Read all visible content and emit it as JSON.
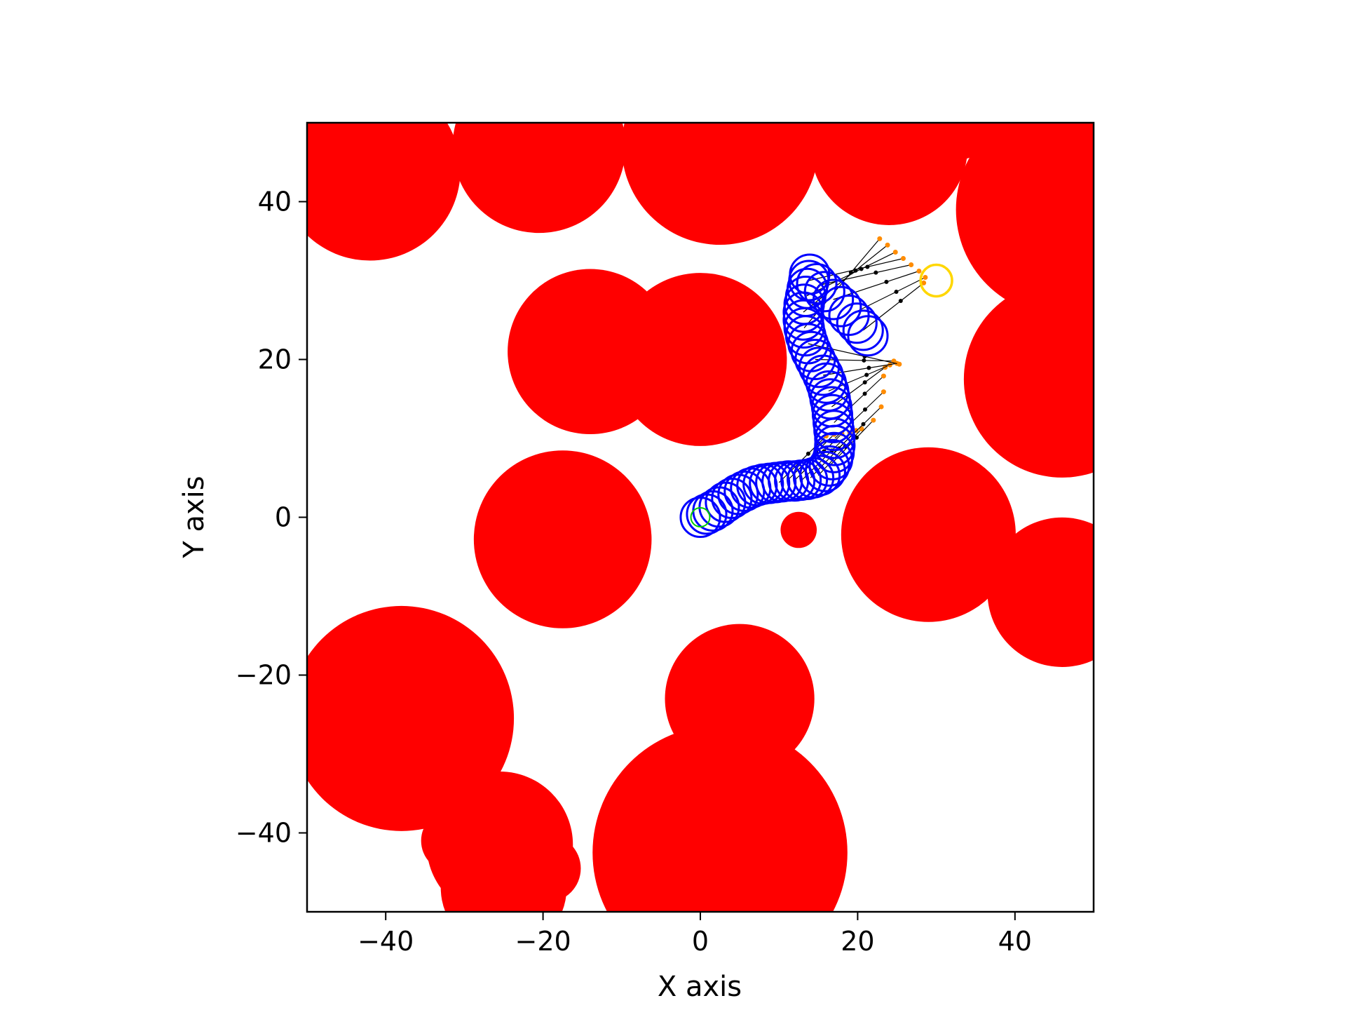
{
  "chart_data": {
    "type": "scatter",
    "title": "",
    "xlabel": "X axis",
    "ylabel": "Y axis",
    "xlim": [
      -50,
      50
    ],
    "ylim": [
      -50,
      50
    ],
    "grid": false,
    "legend": "none",
    "x_ticks": [
      -40,
      -20,
      0,
      20,
      40
    ],
    "y_ticks": [
      -40,
      -20,
      0,
      20,
      40
    ],
    "tick_labels": {
      "-40": "−40",
      "-20": "−20",
      "0": "0",
      "20": "20",
      "40": "40"
    },
    "colors": {
      "obstacle": "#ff0000",
      "path": "#0000ff",
      "goal": "#ffd700",
      "start": "#00cc00",
      "rays": "#000000",
      "ray_end": "#ff8c00"
    },
    "obstacles": [
      {
        "x": -42,
        "y": 44,
        "r": 11.5
      },
      {
        "x": -20.5,
        "y": 47,
        "r": 11
      },
      {
        "x": 2.5,
        "y": 47,
        "r": 12.5
      },
      {
        "x": 24,
        "y": 47,
        "r": 10
      },
      {
        "x": 31,
        "y": 55,
        "r": 10
      },
      {
        "x": 46,
        "y": 39,
        "r": 13.5
      },
      {
        "x": -14,
        "y": 21,
        "r": 10.5
      },
      {
        "x": 0,
        "y": 20,
        "r": 11
      },
      {
        "x": 46,
        "y": 17.5,
        "r": 12.5
      },
      {
        "x": -17.5,
        "y": -2.8,
        "r": 11.3
      },
      {
        "x": 29,
        "y": -2.2,
        "r": 11.1
      },
      {
        "x": 46,
        "y": -9.5,
        "r": 9.5
      },
      {
        "x": 12.5,
        "y": -1.6,
        "r": 2.3
      },
      {
        "x": -38,
        "y": -25.5,
        "r": 14.3
      },
      {
        "x": 5,
        "y": -23,
        "r": 9.5
      },
      {
        "x": -25.5,
        "y": -41.5,
        "r": 9.3
      },
      {
        "x": -31.5,
        "y": -41,
        "r": 4
      },
      {
        "x": -19.5,
        "y": -44.5,
        "r": 4.3
      },
      {
        "x": 2.5,
        "y": -42.5,
        "r": 16.2
      },
      {
        "x": -9,
        "y": -43,
        "r": 2.5
      },
      {
        "x": -25,
        "y": -47,
        "r": 8
      }
    ],
    "path": {
      "r": 2.5,
      "points": [
        [
          0,
          0
        ],
        [
          0.8,
          0.4
        ],
        [
          1.6,
          0.8
        ],
        [
          2.4,
          1.3
        ],
        [
          3.2,
          1.9
        ],
        [
          4.0,
          2.4
        ],
        [
          4.8,
          2.9
        ],
        [
          5.6,
          3.3
        ],
        [
          6.4,
          3.7
        ],
        [
          7.2,
          4.0
        ],
        [
          8.0,
          4.2
        ],
        [
          8.8,
          4.3
        ],
        [
          9.6,
          4.4
        ],
        [
          10.4,
          4.5
        ],
        [
          11.2,
          4.6
        ],
        [
          12.0,
          4.6
        ],
        [
          12.8,
          4.7
        ],
        [
          13.6,
          4.8
        ],
        [
          14.4,
          5.0
        ],
        [
          15.2,
          5.3
        ],
        [
          15.9,
          5.8
        ],
        [
          16.4,
          6.5
        ],
        [
          16.8,
          7.3
        ],
        [
          17.0,
          8.2
        ],
        [
          17.1,
          9.1
        ],
        [
          17.1,
          10.0
        ],
        [
          17.0,
          11.0
        ],
        [
          16.9,
          12.0
        ],
        [
          16.8,
          13.0
        ],
        [
          16.7,
          14.0
        ],
        [
          16.5,
          15.0
        ],
        [
          16.3,
          16.0
        ],
        [
          16.0,
          17.0
        ],
        [
          15.6,
          18.0
        ],
        [
          15.1,
          19.0
        ],
        [
          14.6,
          20.0
        ],
        [
          14.1,
          21.0
        ],
        [
          13.7,
          22.0
        ],
        [
          13.4,
          23.0
        ],
        [
          13.2,
          24.0
        ],
        [
          13.1,
          25.0
        ],
        [
          13.1,
          26.0
        ],
        [
          13.2,
          27.0
        ],
        [
          13.4,
          28.0
        ],
        [
          13.6,
          29.0
        ],
        [
          13.8,
          30.0
        ],
        [
          13.9,
          30.8
        ],
        [
          14.8,
          29.6
        ],
        [
          15.8,
          28.6
        ],
        [
          16.9,
          27.6
        ],
        [
          17.9,
          26.7
        ],
        [
          18.9,
          25.6
        ],
        [
          19.9,
          24.6
        ],
        [
          20.7,
          23.7
        ],
        [
          21.3,
          23.0
        ]
      ]
    },
    "start": {
      "x": 0,
      "y": 0,
      "r": 1.2
    },
    "goal": {
      "x": 30,
      "y": 30,
      "r": 2.0
    },
    "rays": [
      {
        "x1": 10.0,
        "y1": 4.4,
        "x2": 16.0,
        "y2": 10.3
      },
      {
        "x1": 11.0,
        "y1": 4.6,
        "x2": 17.0,
        "y2": 10.5
      },
      {
        "x1": 12.0,
        "y1": 4.7,
        "x2": 18.0,
        "y2": 10.6
      },
      {
        "x1": 13.0,
        "y1": 4.8,
        "x2": 19.0,
        "y2": 10.7
      },
      {
        "x1": 14.0,
        "y1": 5.0,
        "x2": 19.8,
        "y2": 11.0
      },
      {
        "x1": 15.0,
        "y1": 5.3,
        "x2": 20.5,
        "y2": 11.2
      },
      {
        "x1": 16.4,
        "y1": 6.5,
        "x2": 22.0,
        "y2": 12.3
      },
      {
        "x1": 17.0,
        "y1": 8.2,
        "x2": 23.0,
        "y2": 14.0
      },
      {
        "x1": 17.1,
        "y1": 10.0,
        "x2": 23.3,
        "y2": 15.9
      },
      {
        "x1": 17.0,
        "y1": 12.0,
        "x2": 23.3,
        "y2": 17.9
      },
      {
        "x1": 16.7,
        "y1": 14.0,
        "x2": 23.5,
        "y2": 19.0
      },
      {
        "x1": 16.3,
        "y1": 16.0,
        "x2": 24.1,
        "y2": 19.3
      },
      {
        "x1": 15.6,
        "y1": 18.0,
        "x2": 25.0,
        "y2": 19.5
      },
      {
        "x1": 14.6,
        "y1": 20.0,
        "x2": 24.6,
        "y2": 19.8
      },
      {
        "x1": 13.7,
        "y1": 22.0,
        "x2": 25.3,
        "y2": 19.4
      },
      {
        "x1": 13.2,
        "y1": 24.0,
        "x2": 22.8,
        "y2": 35.3
      },
      {
        "x1": 13.1,
        "y1": 26.0,
        "x2": 23.8,
        "y2": 34.5
      },
      {
        "x1": 13.4,
        "y1": 28.0,
        "x2": 24.8,
        "y2": 33.6
      },
      {
        "x1": 13.8,
        "y1": 30.0,
        "x2": 25.8,
        "y2": 32.8
      },
      {
        "x1": 15.0,
        "y1": 29.4,
        "x2": 26.8,
        "y2": 32.0
      },
      {
        "x1": 16.9,
        "y1": 27.6,
        "x2": 27.8,
        "y2": 31.2
      },
      {
        "x1": 18.9,
        "y1": 25.6,
        "x2": 28.6,
        "y2": 30.4
      },
      {
        "x1": 20.7,
        "y1": 23.7,
        "x2": 28.4,
        "y2": 29.7
      }
    ]
  }
}
